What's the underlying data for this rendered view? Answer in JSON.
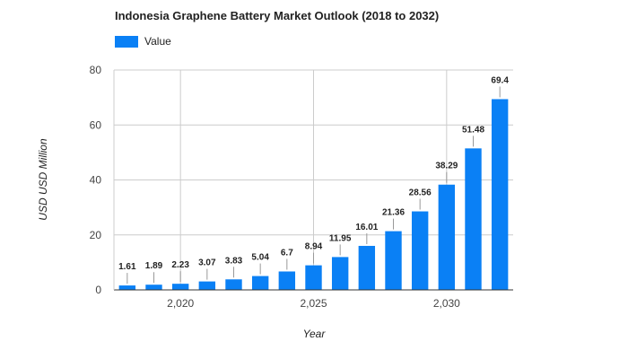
{
  "colors": {
    "bar": "#0a80f5",
    "grid": "#cccccc",
    "axis": "#333333"
  },
  "chart_data": {
    "type": "bar",
    "title": "Indonesia Graphene Battery Market Outlook (2018 to 2032)",
    "xlabel": "Year",
    "ylabel": "USD USD Million",
    "legend": {
      "position": "top-left",
      "entries": [
        "Value"
      ]
    },
    "x": [
      2018,
      2019,
      2020,
      2021,
      2022,
      2023,
      2024,
      2025,
      2026,
      2027,
      2028,
      2029,
      2030,
      2031,
      2032
    ],
    "series": [
      {
        "name": "Value",
        "values": [
          1.61,
          1.89,
          2.23,
          3.07,
          3.83,
          5.04,
          6.7,
          8.94,
          11.95,
          16.01,
          21.36,
          28.56,
          38.29,
          51.48,
          69.4
        ]
      }
    ],
    "data_labels": [
      "1.61",
      "1.89",
      "2.23",
      "3.07",
      "3.83",
      "5.04",
      "6.7",
      "8.94",
      "11.95",
      "16.01",
      "21.36",
      "28.56",
      "38.29",
      "51.48",
      "69.4"
    ],
    "xlim": [
      2017.5,
      2032.5
    ],
    "ylim": [
      0,
      80
    ],
    "x_ticks": [
      2020,
      2025,
      2030
    ],
    "x_tick_labels": [
      "2,020",
      "2,025",
      "2,030"
    ],
    "y_ticks": [
      0,
      20,
      40,
      60,
      80
    ],
    "y_tick_labels": [
      "0",
      "20",
      "40",
      "60",
      "80"
    ],
    "grid": true
  }
}
